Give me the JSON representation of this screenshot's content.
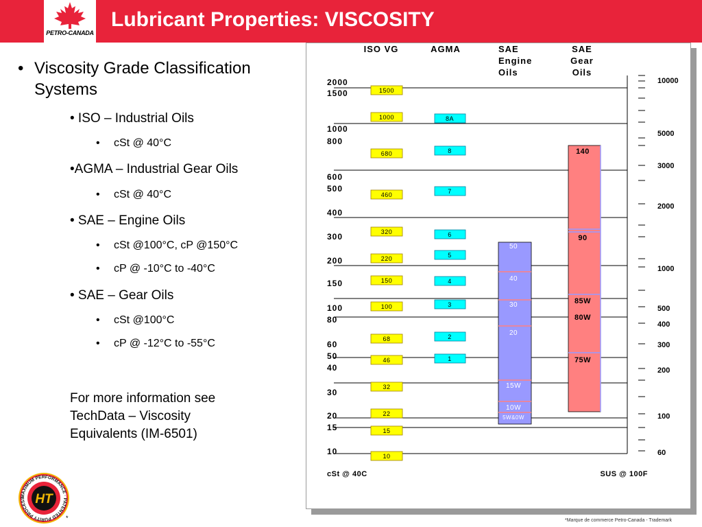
{
  "header": {
    "title": "Lubricant Properties: VISCOSITY",
    "logo_text": "PETRO-CANADA",
    "logo_mark": "*",
    "accent_color": "#e8233a"
  },
  "bullets": [
    {
      "level": 1,
      "text": "Viscosity Grade Classification"
    },
    {
      "level": 1,
      "text": "Systems"
    },
    {
      "level": 2,
      "text": "• ISO – Industrial Oils"
    },
    {
      "level": 3,
      "text": "cSt @ 40°C"
    },
    {
      "level": 2,
      "text": "•AGMA – Industrial Gear Oils"
    },
    {
      "level": 3,
      "text": "cSt @ 40°C"
    },
    {
      "level": 2,
      "text": "• SAE – Engine Oils"
    },
    {
      "level": 3,
      "text": "cSt @100°C, cP @150°C"
    },
    {
      "level": 3,
      "text": " cP @ -10°C to -40°C"
    },
    {
      "level": 2,
      "text": "• SAE – Gear Oils"
    },
    {
      "level": 3,
      "text": "cSt @100°C"
    },
    {
      "level": 3,
      "text": "cP @ -12°C to -55°C"
    }
  ],
  "more_info": {
    "line1": "For more information see",
    "line2": "TechData – Viscosity",
    "line3": "Equivalents (IM-6501)"
  },
  "badge": {
    "ring_text": "MAXIMUM PERFORMANCE · PATENTED PURITY PROCESS",
    "center_text": "HT",
    "mark": "*"
  },
  "footer": {
    "trademark": "*Marque de commerce Petro-Canada - Trademark"
  },
  "chart_data": {
    "type": "table",
    "columns": [
      {
        "key": "iso",
        "lines": [
          "ISO VG"
        ]
      },
      {
        "key": "agma",
        "lines": [
          "AGMA"
        ]
      },
      {
        "key": "sae_engine",
        "lines": [
          "SAE",
          "Engine",
          "Oils"
        ]
      },
      {
        "key": "sae_gear",
        "lines": [
          "SAE",
          "Gear",
          "Oils"
        ]
      }
    ],
    "left_axis": {
      "label": "cSt @ 40C",
      "ticks": [
        "2000",
        "1500",
        "1000",
        "800",
        "600",
        "500",
        "400",
        "300",
        "200",
        "150",
        "100",
        "80",
        "60",
        "50",
        "40",
        "30",
        "20",
        "15",
        "10"
      ]
    },
    "right_axis": {
      "label": "SUS @ 100F",
      "ticks": [
        "10000",
        "5000",
        "3000",
        "2000",
        "1000",
        "500",
        "400",
        "300",
        "200",
        "100",
        "60"
      ]
    },
    "iso_grades": [
      "1500",
      "1000",
      "680",
      "460",
      "320",
      "220",
      "150",
      "100",
      "68",
      "46",
      "32",
      "22",
      "15",
      "10"
    ],
    "agma_grades": [
      "8A",
      "8",
      "7",
      "6",
      "5",
      "4",
      "3",
      "2",
      "1"
    ],
    "sae_engine_grades": [
      "50",
      "40",
      "30",
      "20",
      "15W",
      "10W",
      "5W&0W"
    ],
    "sae_gear_grades": [
      "140",
      "90",
      "85W",
      "80W",
      "75W"
    ],
    "colors": {
      "iso": "#ffff00",
      "agma": "#00ffff",
      "sae_engine": "#9999ff",
      "sae_gear": "#ff8080",
      "divider": "#ff8080",
      "border": "#000000"
    }
  }
}
